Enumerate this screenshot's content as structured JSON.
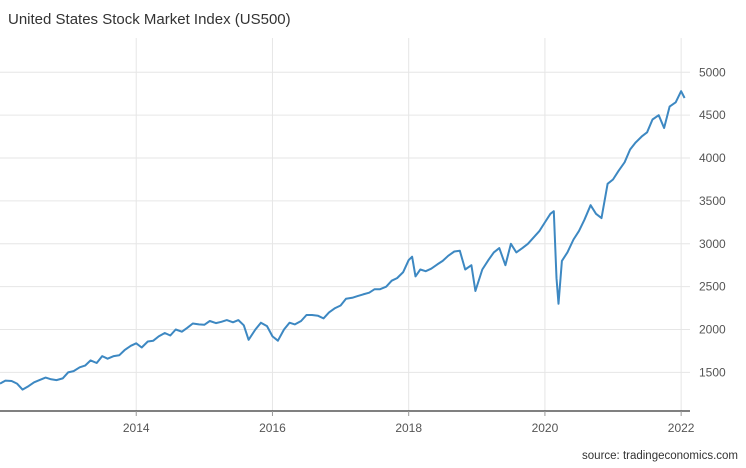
{
  "header": {
    "title": "United States Stock Market Index (US500)"
  },
  "footer": {
    "source": "source: tradingeconomics.com"
  },
  "chart_data": {
    "type": "line",
    "title": "United States Stock Market Index (US500)",
    "xlabel": "",
    "ylabel": "",
    "xlim": [
      2012.0,
      2022.13
    ],
    "ylim": [
      1050,
      5400
    ],
    "x_ticks": [
      2014,
      2016,
      2018,
      2020,
      2022
    ],
    "y_ticks": [
      1500,
      2000,
      2500,
      3000,
      3500,
      4000,
      4500,
      5000
    ],
    "grid": true,
    "y_axis_side": "right",
    "colors": {
      "line": "#3d88c2",
      "grid": "#e6e6e6",
      "axis": "#000000"
    },
    "series": [
      {
        "x": [
          2012.0,
          2012.08,
          2012.17,
          2012.25,
          2012.33,
          2012.42,
          2012.5,
          2012.58,
          2012.67,
          2012.75,
          2012.83,
          2012.92,
          2013.0,
          2013.08,
          2013.17,
          2013.25,
          2013.33,
          2013.42,
          2013.5,
          2013.58,
          2013.67,
          2013.75,
          2013.83,
          2013.92,
          2014.0,
          2014.08,
          2014.17,
          2014.25,
          2014.33,
          2014.42,
          2014.5,
          2014.58,
          2014.67,
          2014.75,
          2014.83,
          2014.92,
          2015.0,
          2015.08,
          2015.17,
          2015.25,
          2015.33,
          2015.42,
          2015.5,
          2015.58,
          2015.65,
          2015.75,
          2015.83,
          2015.92,
          2016.0,
          2016.08,
          2016.17,
          2016.25,
          2016.33,
          2016.42,
          2016.5,
          2016.58,
          2016.67,
          2016.75,
          2016.83,
          2016.92,
          2017.0,
          2017.08,
          2017.17,
          2017.25,
          2017.33,
          2017.42,
          2017.5,
          2017.58,
          2017.67,
          2017.75,
          2017.83,
          2017.92,
          2018.0,
          2018.05,
          2018.1,
          2018.17,
          2018.25,
          2018.33,
          2018.42,
          2018.5,
          2018.58,
          2018.67,
          2018.75,
          2018.83,
          2018.92,
          2018.98,
          2019.08,
          2019.17,
          2019.25,
          2019.33,
          2019.42,
          2019.5,
          2019.58,
          2019.67,
          2019.75,
          2019.83,
          2019.92,
          2020.0,
          2020.08,
          2020.13,
          2020.17,
          2020.2,
          2020.25,
          2020.33,
          2020.42,
          2020.5,
          2020.58,
          2020.67,
          2020.75,
          2020.83,
          2020.92,
          2021.0,
          2021.08,
          2021.17,
          2021.25,
          2021.33,
          2021.42,
          2021.5,
          2021.58,
          2021.67,
          2021.75,
          2021.83,
          2021.92,
          2022.0,
          2022.05
        ],
        "y": [
          1370,
          1405,
          1400,
          1370,
          1300,
          1340,
          1385,
          1410,
          1440,
          1420,
          1410,
          1430,
          1500,
          1515,
          1560,
          1580,
          1640,
          1610,
          1690,
          1660,
          1690,
          1700,
          1760,
          1810,
          1840,
          1790,
          1860,
          1870,
          1920,
          1960,
          1930,
          2000,
          1975,
          2020,
          2070,
          2060,
          2055,
          2100,
          2075,
          2090,
          2110,
          2085,
          2110,
          2050,
          1880,
          2000,
          2080,
          2040,
          1920,
          1870,
          2000,
          2080,
          2060,
          2100,
          2170,
          2170,
          2160,
          2130,
          2200,
          2250,
          2280,
          2360,
          2370,
          2390,
          2410,
          2430,
          2470,
          2470,
          2500,
          2570,
          2600,
          2670,
          2810,
          2850,
          2620,
          2700,
          2680,
          2710,
          2760,
          2800,
          2860,
          2910,
          2920,
          2700,
          2750,
          2450,
          2700,
          2810,
          2900,
          2950,
          2750,
          3000,
          2900,
          2950,
          3000,
          3070,
          3150,
          3250,
          3350,
          3380,
          2600,
          2300,
          2800,
          2900,
          3050,
          3150,
          3280,
          3450,
          3350,
          3300,
          3700,
          3750,
          3850,
          3950,
          4100,
          4180,
          4250,
          4300,
          4450,
          4500,
          4350,
          4600,
          4650,
          4780,
          4700
        ]
      }
    ]
  }
}
